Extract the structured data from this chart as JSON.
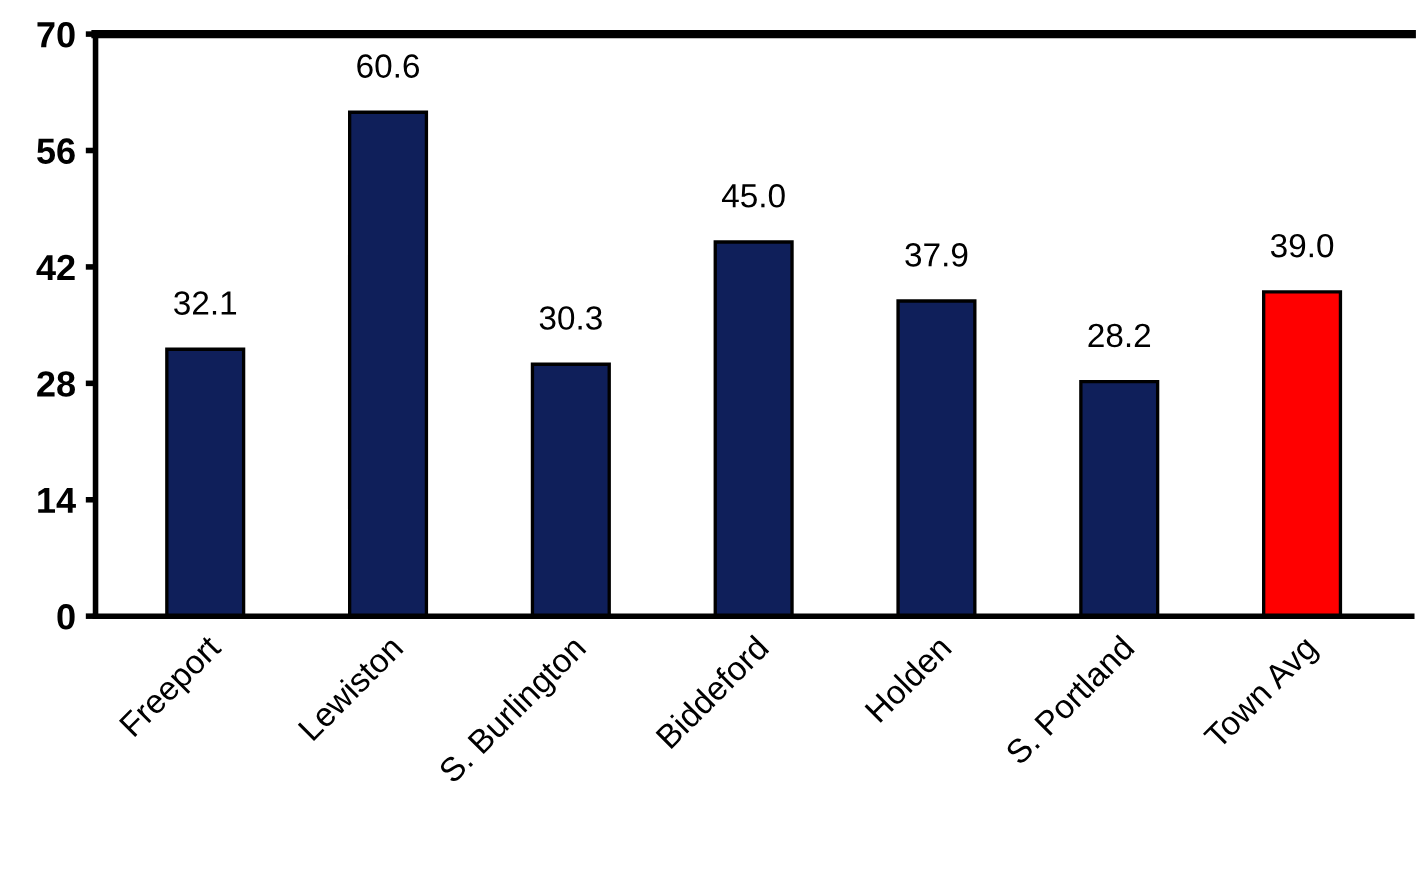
{
  "chart_data": {
    "type": "bar",
    "categories": [
      "Freeport",
      "Lewiston",
      "S. Burlington",
      "Biddeford",
      "Holden",
      "S. Portland",
      "Town Avg"
    ],
    "values": [
      32.1,
      60.6,
      30.3,
      45.0,
      37.9,
      28.2,
      39.0
    ],
    "value_labels": [
      "32.1",
      "60.6",
      "30.3",
      "45.0",
      "37.9",
      "28.2",
      "39.0"
    ],
    "colors": [
      "#0f1f5a",
      "#0f1f5a",
      "#0f1f5a",
      "#0f1f5a",
      "#0f1f5a",
      "#0f1f5a",
      "#ff0000"
    ],
    "ylim": [
      0,
      70
    ],
    "yticks": [
      0,
      14,
      28,
      42,
      56,
      70
    ],
    "grid": false,
    "legend": false
  }
}
